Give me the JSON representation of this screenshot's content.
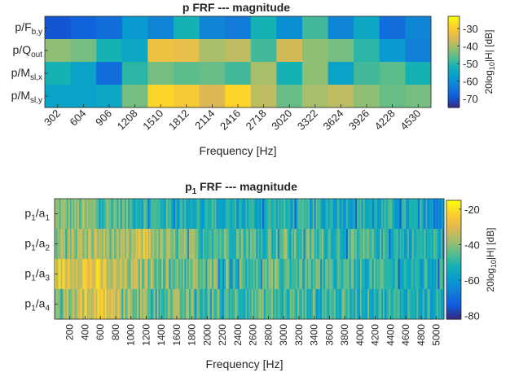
{
  "charts": [
    {
      "id": "top",
      "type": "heatmap",
      "title": "p FRF --- magnitude",
      "xlabel": "Frequency [Hz]",
      "x_ticks": [
        "302",
        "604",
        "906",
        "1208",
        "1510",
        "1812",
        "2114",
        "2416",
        "2718",
        "3020",
        "3322",
        "3624",
        "3926",
        "4228",
        "4530"
      ],
      "rows": [
        {
          "base": "p/F",
          "sub": "b,y"
        },
        {
          "base": "p/Q",
          "sub": "out"
        },
        {
          "base": "p/M",
          "sub": "sl,x"
        },
        {
          "base": "p/M",
          "sub": "sl,y"
        }
      ],
      "colorbar": {
        "label": "20log",
        "label_sub": "10",
        "label_tail": "|H| [dB]",
        "ticks": [
          "-30",
          "-40",
          "-50",
          "-60",
          "-70"
        ],
        "tick_values": [
          -30,
          -40,
          -50,
          -60,
          -70
        ],
        "range": [
          -75,
          -23
        ]
      }
    },
    {
      "id": "bottom",
      "type": "heatmap",
      "title": "p",
      "title_sub": "1",
      "title_tail": " FRF --- magnitude",
      "xlabel": "Frequency [Hz]",
      "x_ticks": [
        "200",
        "400",
        "600",
        "800",
        "1000",
        "1200",
        "1400",
        "1600",
        "1800",
        "2000",
        "2200",
        "2400",
        "2600",
        "2800",
        "3000",
        "3200",
        "3400",
        "3600",
        "3800",
        "4000",
        "4200",
        "4400",
        "4600",
        "4800",
        "5000"
      ],
      "rows": [
        {
          "base": "p",
          "sub": "1",
          "tail": "/a",
          "sub2": "1"
        },
        {
          "base": "p",
          "sub": "1",
          "tail": "/a",
          "sub2": "2"
        },
        {
          "base": "p",
          "sub": "1",
          "tail": "/a",
          "sub2": "3"
        },
        {
          "base": "p",
          "sub": "1",
          "tail": "/a",
          "sub2": "4"
        }
      ],
      "colorbar": {
        "label": "20log",
        "label_sub": "10",
        "label_tail": "|H| [dB]",
        "ticks": [
          "-20",
          "-40",
          "-60",
          "-80"
        ],
        "tick_values": [
          -20,
          -40,
          -60,
          -80
        ],
        "range": [
          -82,
          -15
        ]
      }
    }
  ],
  "chart_data": [
    {
      "type": "heatmap",
      "title": "p FRF --- magnitude",
      "xlabel": "Frequency [Hz]",
      "ylabel": "",
      "x": [
        302,
        604,
        906,
        1208,
        1510,
        1812,
        2114,
        2416,
        2718,
        3020,
        3322,
        3624,
        3926,
        4228,
        4530
      ],
      "y": [
        "p/F_{b,y}",
        "p/Q_{out}",
        "p/M_{sl,x}",
        "p/M_{sl,y}"
      ],
      "values": [
        [
          -70,
          -68,
          -66,
          -58,
          -62,
          -52,
          -62,
          -64,
          -52,
          -60,
          -48,
          -62,
          -55,
          -66,
          -62
        ],
        [
          -42,
          -44,
          -52,
          -55,
          -32,
          -33,
          -40,
          -38,
          -48,
          -36,
          -42,
          -44,
          -50,
          -58,
          -63
        ],
        [
          -52,
          -56,
          -66,
          -50,
          -44,
          -46,
          -45,
          -48,
          -40,
          -52,
          -42,
          -56,
          -48,
          -46,
          -52
        ],
        [
          -56,
          -56,
          -55,
          -44,
          -28,
          -30,
          -35,
          -28,
          -38,
          -45,
          -40,
          -38,
          -42,
          -45,
          -44
        ]
      ],
      "colorbar_label": "20log_{10}|H| [dB]",
      "clim": [
        -75,
        -23
      ]
    },
    {
      "type": "heatmap",
      "title": "p_1 FRF --- magnitude",
      "xlabel": "Frequency [Hz]",
      "ylabel": "",
      "x_range": [
        0,
        5100
      ],
      "y": [
        "p_1/a_1",
        "p_1/a_2",
        "p_1/a_3",
        "p_1/a_4"
      ],
      "row_profile_db": [
        [
          -42,
          -42,
          -44,
          -44,
          -48,
          -50,
          -50,
          -52,
          -52,
          -52,
          -54,
          -54,
          -54,
          -52,
          -52,
          -54,
          -52,
          -52,
          -54,
          -52,
          -54,
          -54,
          -56,
          -56,
          -58
        ],
        [
          -38,
          -36,
          -36,
          -40,
          -40,
          -28,
          -42,
          -44,
          -44,
          -44,
          -45,
          -44,
          -46,
          -46,
          -44,
          -46,
          -46,
          -48,
          -50,
          -48,
          -50,
          -50,
          -52,
          -52,
          -52
        ],
        [
          -28,
          -26,
          -30,
          -35,
          -38,
          -38,
          -40,
          -42,
          -42,
          -44,
          -44,
          -45,
          -45,
          -46,
          -46,
          -46,
          -48,
          -48,
          -50,
          -50,
          -50,
          -52,
          -52,
          -54,
          -54
        ],
        [
          -36,
          -28,
          -26,
          -34,
          -38,
          -40,
          -42,
          -44,
          -44,
          -45,
          -45,
          -46,
          -46,
          -46,
          -48,
          -48,
          -48,
          -48,
          -50,
          -50,
          -50,
          -52,
          -52,
          -52,
          -54
        ]
      ],
      "row_profile_x": [
        200,
        400,
        600,
        800,
        1000,
        1200,
        1400,
        1600,
        1800,
        2000,
        2200,
        2400,
        2600,
        2800,
        3000,
        3200,
        3400,
        3600,
        3800,
        4000,
        4200,
        4400,
        4600,
        4800,
        5000
      ],
      "colorbar_label": "20log_{10}|H| [dB]",
      "clim": [
        -82,
        -15
      ]
    }
  ]
}
